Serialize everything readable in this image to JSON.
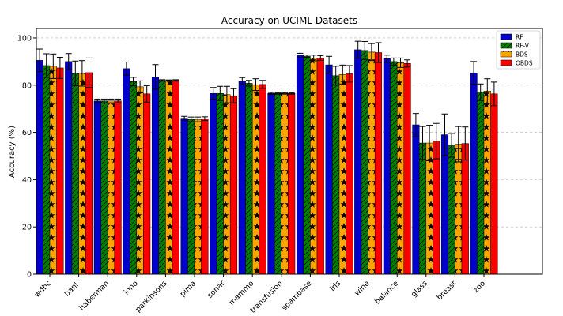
{
  "chart_data": {
    "type": "bar",
    "title": "Accuracy on UCIML Datasets",
    "xlabel": "",
    "ylabel": "Accuracy (%)",
    "ylim": [
      0,
      104
    ],
    "yticks": [
      0,
      20,
      40,
      60,
      80,
      100
    ],
    "grid": "horizontal dashed",
    "legend_position": "top-right",
    "categories": [
      "wdbc",
      "bank",
      "haberman",
      "iono",
      "parkinsons",
      "pima",
      "sonar",
      "mammo",
      "transfusion",
      "spambase",
      "iris",
      "wine",
      "balance",
      "glass",
      "breast",
      "zoo"
    ],
    "series": [
      {
        "name": "RF",
        "color": "#0000cc",
        "hatch": "none",
        "values": [
          90.5,
          90.0,
          73.3,
          87.0,
          83.5,
          66.0,
          76.5,
          81.7,
          76.5,
          92.7,
          88.6,
          95.0,
          91.2,
          63.2,
          59.0,
          85.2
        ],
        "errors": [
          4.8,
          3.4,
          0.8,
          2.8,
          5.2,
          0.8,
          2.5,
          1.5,
          0.4,
          0.8,
          3.6,
          3.6,
          1.5,
          4.8,
          8.8,
          4.8
        ]
      },
      {
        "name": "RF-V",
        "color": "#008000",
        "hatch": "slash",
        "values": [
          88.3,
          85.0,
          73.3,
          81.5,
          82.0,
          65.5,
          76.5,
          80.8,
          76.5,
          92.3,
          84.0,
          94.7,
          90.0,
          55.5,
          54.5,
          77.0
        ],
        "errors": [
          5.0,
          5.2,
          0.8,
          1.8,
          0.3,
          1.0,
          3.0,
          1.2,
          0.3,
          0.5,
          4.0,
          3.8,
          1.5,
          7.0,
          5.0,
          3.5
        ]
      },
      {
        "name": "BDS",
        "color": "#ffa500",
        "hatch": "star",
        "values": [
          88.0,
          85.0,
          73.3,
          79.3,
          82.0,
          65.5,
          76.0,
          80.2,
          76.5,
          91.5,
          84.5,
          94.0,
          89.5,
          55.5,
          55.0,
          77.5
        ],
        "errors": [
          5.2,
          5.4,
          0.8,
          2.5,
          0.2,
          1.0,
          3.5,
          2.5,
          0.3,
          1.2,
          4.0,
          3.6,
          2.0,
          7.5,
          7.5,
          5.2
        ]
      },
      {
        "name": "OBDS",
        "color": "#ff0000",
        "hatch": "none",
        "values": [
          87.3,
          85.3,
          73.3,
          76.3,
          82.0,
          65.8,
          75.5,
          80.3,
          76.5,
          91.5,
          84.8,
          93.8,
          89.2,
          56.3,
          55.3,
          76.3
        ],
        "errors": [
          4.5,
          6.2,
          0.8,
          3.5,
          0.3,
          0.8,
          3.0,
          1.7,
          0.3,
          1.0,
          3.5,
          4.2,
          1.5,
          7.5,
          7.0,
          5.0
        ]
      }
    ]
  }
}
